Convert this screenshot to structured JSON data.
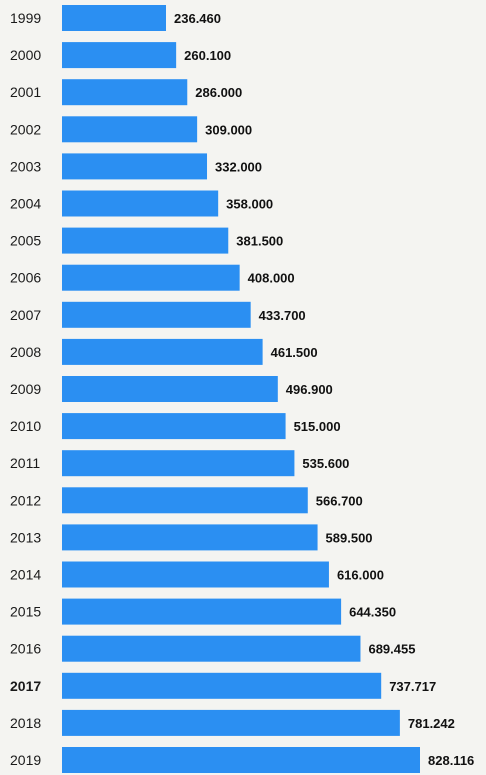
{
  "chart_data": {
    "type": "bar",
    "orientation": "horizontal",
    "categories": [
      "1999",
      "2000",
      "2001",
      "2002",
      "2003",
      "2004",
      "2005",
      "2006",
      "2007",
      "2008",
      "2009",
      "2010",
      "2011",
      "2012",
      "2013",
      "2014",
      "2015",
      "2016",
      "2017",
      "2018",
      "2019"
    ],
    "values": [
      236.46,
      260.1,
      286.0,
      309.0,
      332.0,
      358.0,
      381.5,
      408.0,
      433.7,
      461.5,
      496.9,
      515.0,
      535.6,
      566.7,
      589.5,
      616.0,
      644.35,
      689.455,
      737.717,
      781.242,
      828.116
    ],
    "value_labels": [
      "236.460",
      "260.100",
      "286.000",
      "309.000",
      "332.000",
      "358.000",
      "381.500",
      "408.000",
      "433.700",
      "461.500",
      "496.900",
      "515.000",
      "535.600",
      "566.700",
      "589.500",
      "616.000",
      "644.350",
      "689.455",
      "737.717",
      "781.242",
      "828.116"
    ],
    "title": "",
    "xlabel": "",
    "ylabel": "",
    "grid": false,
    "bar_color": "#2b8ff2",
    "bold_categories": [
      "2017"
    ]
  }
}
